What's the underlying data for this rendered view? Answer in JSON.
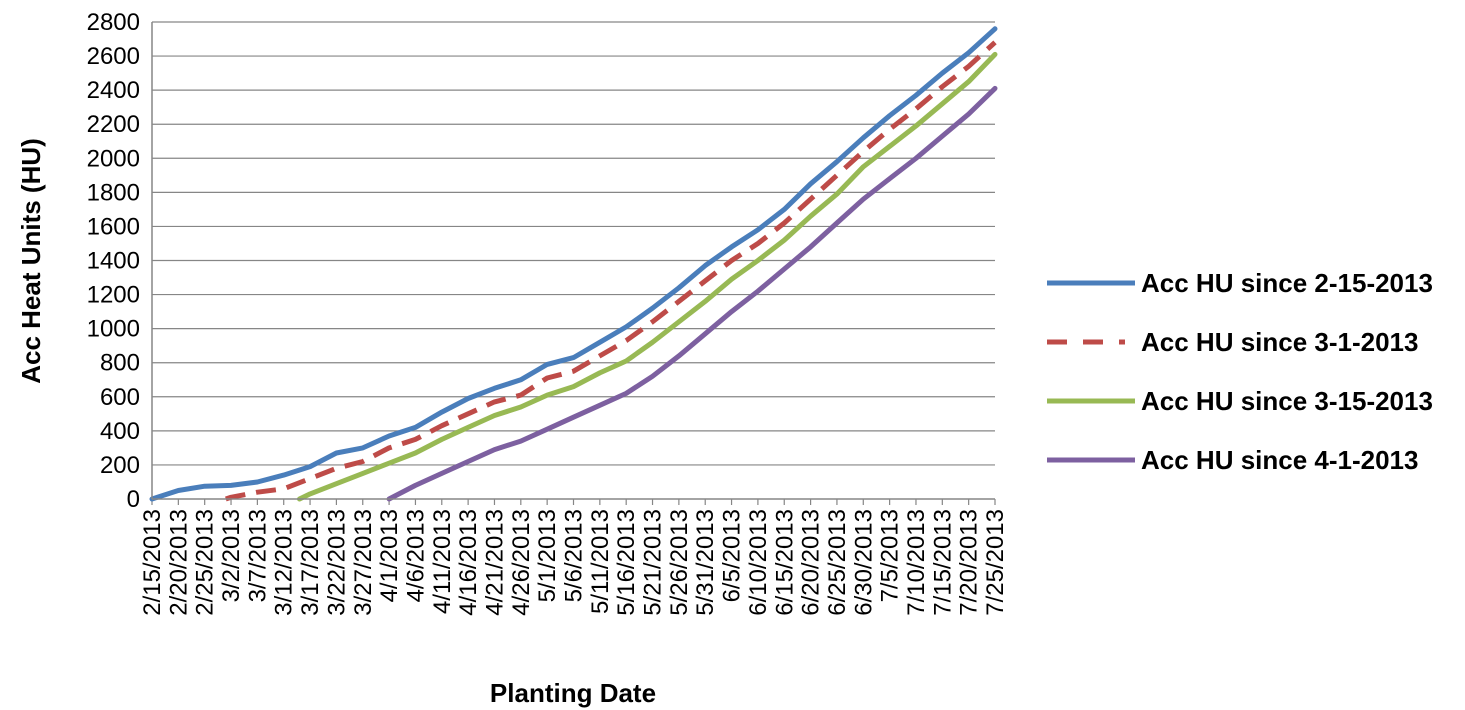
{
  "chart_data": {
    "type": "line",
    "xlabel": "Planting Date",
    "ylabel": "Acc Heat Units (HU)",
    "ylim": [
      0,
      2800
    ],
    "y_ticks": [
      0,
      200,
      400,
      600,
      800,
      1000,
      1200,
      1400,
      1600,
      1800,
      2000,
      2200,
      2400,
      2600,
      2800
    ],
    "x_range": [
      "2013-02-15",
      "2013-07-25"
    ],
    "x_tick_labels": [
      "2/15/2013",
      "2/20/2013",
      "2/25/2013",
      "3/2/2013",
      "3/7/2013",
      "3/12/2013",
      "3/17/2013",
      "3/22/2013",
      "3/27/2013",
      "4/1/2013",
      "4/6/2013",
      "4/11/2013",
      "4/16/2013",
      "4/21/2013",
      "4/26/2013",
      "5/1/2013",
      "5/6/2013",
      "5/11/2013",
      "5/16/2013",
      "5/21/2013",
      "5/26/2013",
      "5/31/2013",
      "6/5/2013",
      "6/10/2013",
      "6/15/2013",
      "6/20/2013",
      "6/25/2013",
      "6/30/2013",
      "7/5/2013",
      "7/10/2013",
      "7/15/2013",
      "7/20/2013",
      "7/25/2013"
    ],
    "grid": "horizontal",
    "legend_position": "right",
    "series": [
      {
        "name": "Acc HU since 2-15-2013",
        "color": "#4a7ebb",
        "style": "solid",
        "x": [
          "2013-02-15",
          "2013-02-20",
          "2013-02-25",
          "2013-03-02",
          "2013-03-07",
          "2013-03-12",
          "2013-03-17",
          "2013-03-22",
          "2013-03-27",
          "2013-04-01",
          "2013-04-06",
          "2013-04-11",
          "2013-04-16",
          "2013-04-21",
          "2013-04-26",
          "2013-05-01",
          "2013-05-06",
          "2013-05-11",
          "2013-05-16",
          "2013-05-21",
          "2013-05-26",
          "2013-05-31",
          "2013-06-05",
          "2013-06-10",
          "2013-06-15",
          "2013-06-20",
          "2013-06-25",
          "2013-06-30",
          "2013-07-05",
          "2013-07-10",
          "2013-07-15",
          "2013-07-20",
          "2013-07-25"
        ],
        "y": [
          0,
          50,
          75,
          80,
          100,
          140,
          190,
          270,
          300,
          370,
          420,
          510,
          590,
          650,
          700,
          790,
          830,
          920,
          1010,
          1120,
          1240,
          1370,
          1480,
          1580,
          1700,
          1850,
          1980,
          2120,
          2250,
          2370,
          2500,
          2620,
          2760
        ]
      },
      {
        "name": "Acc HU since 3-1-2013",
        "color": "#be4b48",
        "style": "dashed",
        "x": [
          "2013-03-01",
          "2013-03-02",
          "2013-03-07",
          "2013-03-12",
          "2013-03-17",
          "2013-03-22",
          "2013-03-27",
          "2013-04-01",
          "2013-04-06",
          "2013-04-11",
          "2013-04-16",
          "2013-04-21",
          "2013-04-26",
          "2013-05-01",
          "2013-05-06",
          "2013-05-11",
          "2013-05-16",
          "2013-05-21",
          "2013-05-26",
          "2013-05-31",
          "2013-06-05",
          "2013-06-10",
          "2013-06-15",
          "2013-06-20",
          "2013-06-25",
          "2013-06-30",
          "2013-07-05",
          "2013-07-10",
          "2013-07-15",
          "2013-07-20",
          "2013-07-25"
        ],
        "y": [
          0,
          10,
          40,
          60,
          120,
          180,
          220,
          300,
          350,
          430,
          500,
          570,
          610,
          710,
          750,
          840,
          930,
          1040,
          1160,
          1280,
          1400,
          1500,
          1620,
          1760,
          1900,
          2040,
          2170,
          2290,
          2420,
          2540,
          2680
        ]
      },
      {
        "name": "Acc HU since 3-15-2013",
        "color": "#98b954",
        "style": "solid",
        "x": [
          "2013-03-15",
          "2013-03-17",
          "2013-03-22",
          "2013-03-27",
          "2013-04-01",
          "2013-04-06",
          "2013-04-11",
          "2013-04-16",
          "2013-04-21",
          "2013-04-26",
          "2013-05-01",
          "2013-05-06",
          "2013-05-11",
          "2013-05-16",
          "2013-05-21",
          "2013-05-26",
          "2013-05-31",
          "2013-06-05",
          "2013-06-10",
          "2013-06-15",
          "2013-06-20",
          "2013-06-25",
          "2013-06-30",
          "2013-07-05",
          "2013-07-10",
          "2013-07-15",
          "2013-07-20",
          "2013-07-25"
        ],
        "y": [
          0,
          30,
          90,
          150,
          210,
          270,
          350,
          420,
          490,
          540,
          610,
          660,
          740,
          810,
          920,
          1040,
          1160,
          1290,
          1400,
          1520,
          1660,
          1790,
          1950,
          2070,
          2190,
          2320,
          2450,
          2610
        ]
      },
      {
        "name": "Acc HU since 4-1-2013",
        "color": "#7d60a0",
        "style": "solid",
        "x": [
          "2013-04-01",
          "2013-04-06",
          "2013-04-11",
          "2013-04-16",
          "2013-04-21",
          "2013-04-26",
          "2013-05-01",
          "2013-05-06",
          "2013-05-11",
          "2013-05-16",
          "2013-05-21",
          "2013-05-26",
          "2013-05-31",
          "2013-06-05",
          "2013-06-10",
          "2013-06-15",
          "2013-06-20",
          "2013-06-25",
          "2013-06-30",
          "2013-07-05",
          "2013-07-10",
          "2013-07-15",
          "2013-07-20",
          "2013-07-25"
        ],
        "y": [
          0,
          80,
          150,
          220,
          290,
          340,
          410,
          480,
          550,
          620,
          720,
          840,
          970,
          1100,
          1220,
          1350,
          1480,
          1620,
          1760,
          1880,
          2000,
          2130,
          2260,
          2410
        ]
      }
    ]
  }
}
